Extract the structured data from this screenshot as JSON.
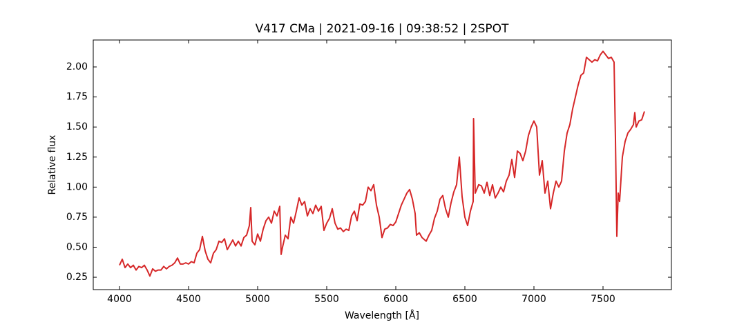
{
  "chart_data": {
    "type": "line",
    "title": "V417 CMa | 2021-09-16 | 09:38:52 | 2SPOT",
    "xlabel": "Wavelength [Å]",
    "ylabel": "Relative flux",
    "xlim": [
      3810,
      7995
    ],
    "ylim": [
      0.147,
      2.224
    ],
    "xticks": [
      4000,
      4500,
      5000,
      5500,
      6000,
      6500,
      7000,
      7500
    ],
    "yticks": [
      {
        "value": 0.25,
        "label": "0.25"
      },
      {
        "value": 0.5,
        "label": "0.50"
      },
      {
        "value": 0.75,
        "label": "0.75"
      },
      {
        "value": 1.0,
        "label": "1.00"
      },
      {
        "value": 1.25,
        "label": "1.25"
      },
      {
        "value": 1.5,
        "label": "1.50"
      },
      {
        "value": 1.75,
        "label": "1.75"
      },
      {
        "value": 2.0,
        "label": "2.00"
      }
    ],
    "grid": false,
    "series": [
      {
        "color": "#d62728",
        "x": [
          4000,
          4020,
          4040,
          4060,
          4080,
          4100,
          4120,
          4140,
          4160,
          4180,
          4200,
          4220,
          4240,
          4260,
          4280,
          4300,
          4320,
          4340,
          4360,
          4380,
          4400,
          4420,
          4440,
          4460,
          4480,
          4500,
          4520,
          4540,
          4560,
          4580,
          4600,
          4620,
          4640,
          4660,
          4680,
          4700,
          4720,
          4740,
          4760,
          4780,
          4800,
          4820,
          4840,
          4860,
          4880,
          4900,
          4920,
          4940,
          4950,
          4960,
          4980,
          5000,
          5020,
          5040,
          5060,
          5080,
          5100,
          5120,
          5140,
          5160,
          5170,
          5180,
          5200,
          5220,
          5240,
          5260,
          5280,
          5300,
          5320,
          5340,
          5360,
          5380,
          5400,
          5420,
          5440,
          5460,
          5480,
          5500,
          5520,
          5540,
          5560,
          5580,
          5600,
          5620,
          5640,
          5660,
          5680,
          5700,
          5720,
          5740,
          5760,
          5780,
          5800,
          5820,
          5840,
          5860,
          5880,
          5900,
          5920,
          5940,
          5960,
          5980,
          6000,
          6020,
          6040,
          6060,
          6080,
          6100,
          6120,
          6140,
          6150,
          6170,
          6190,
          6220,
          6240,
          6260,
          6280,
          6300,
          6320,
          6340,
          6360,
          6380,
          6400,
          6420,
          6440,
          6460,
          6480,
          6500,
          6520,
          6540,
          6560,
          6563,
          6575,
          6600,
          6620,
          6640,
          6660,
          6680,
          6700,
          6720,
          6740,
          6760,
          6780,
          6800,
          6820,
          6840,
          6860,
          6880,
          6900,
          6920,
          6940,
          6960,
          6980,
          7000,
          7020,
          7040,
          7060,
          7080,
          7100,
          7120,
          7140,
          7160,
          7180,
          7200,
          7220,
          7240,
          7260,
          7280,
          7300,
          7320,
          7340,
          7360,
          7380,
          7400,
          7420,
          7440,
          7460,
          7480,
          7500,
          7520,
          7540,
          7560,
          7580,
          7590,
          7600,
          7610,
          7620,
          7640,
          7660,
          7680,
          7700,
          7720,
          7730,
          7740,
          7760,
          7780,
          7800
        ],
        "values": [
          0.35,
          0.4,
          0.33,
          0.36,
          0.33,
          0.35,
          0.31,
          0.34,
          0.33,
          0.35,
          0.31,
          0.26,
          0.32,
          0.3,
          0.31,
          0.31,
          0.34,
          0.32,
          0.34,
          0.35,
          0.37,
          0.41,
          0.36,
          0.36,
          0.37,
          0.36,
          0.38,
          0.37,
          0.45,
          0.48,
          0.59,
          0.47,
          0.4,
          0.37,
          0.45,
          0.48,
          0.55,
          0.54,
          0.57,
          0.48,
          0.52,
          0.56,
          0.51,
          0.55,
          0.51,
          0.58,
          0.6,
          0.68,
          0.83,
          0.55,
          0.52,
          0.61,
          0.55,
          0.65,
          0.72,
          0.75,
          0.7,
          0.8,
          0.76,
          0.84,
          0.44,
          0.5,
          0.6,
          0.57,
          0.75,
          0.7,
          0.8,
          0.91,
          0.85,
          0.88,
          0.76,
          0.82,
          0.78,
          0.85,
          0.8,
          0.84,
          0.64,
          0.7,
          0.74,
          0.82,
          0.7,
          0.65,
          0.66,
          0.63,
          0.65,
          0.64,
          0.76,
          0.8,
          0.72,
          0.86,
          0.85,
          0.88,
          1.0,
          0.97,
          1.02,
          0.85,
          0.75,
          0.58,
          0.65,
          0.66,
          0.69,
          0.68,
          0.71,
          0.78,
          0.85,
          0.9,
          0.95,
          0.98,
          0.9,
          0.78,
          0.6,
          0.62,
          0.58,
          0.55,
          0.6,
          0.64,
          0.74,
          0.8,
          0.9,
          0.93,
          0.82,
          0.75,
          0.87,
          0.96,
          1.02,
          1.25,
          0.92,
          0.75,
          0.68,
          0.8,
          0.88,
          1.57,
          0.95,
          1.02,
          1.01,
          0.95,
          1.04,
          0.93,
          1.02,
          0.91,
          0.95,
          1.0,
          0.96,
          1.05,
          1.1,
          1.23,
          1.08,
          1.3,
          1.28,
          1.22,
          1.3,
          1.43,
          1.5,
          1.55,
          1.5,
          1.1,
          1.22,
          0.95,
          1.05,
          0.82,
          0.95,
          1.05,
          1.0,
          1.05,
          1.3,
          1.45,
          1.52,
          1.65,
          1.75,
          1.85,
          1.93,
          1.95,
          2.08,
          2.06,
          2.04,
          2.06,
          2.05,
          2.1,
          2.13,
          2.1,
          2.07,
          2.08,
          2.04,
          1.4,
          0.59,
          0.95,
          0.88,
          1.25,
          1.38,
          1.45,
          1.48,
          1.52,
          1.62,
          1.5,
          1.55,
          1.56,
          1.63
        ]
      }
    ]
  }
}
